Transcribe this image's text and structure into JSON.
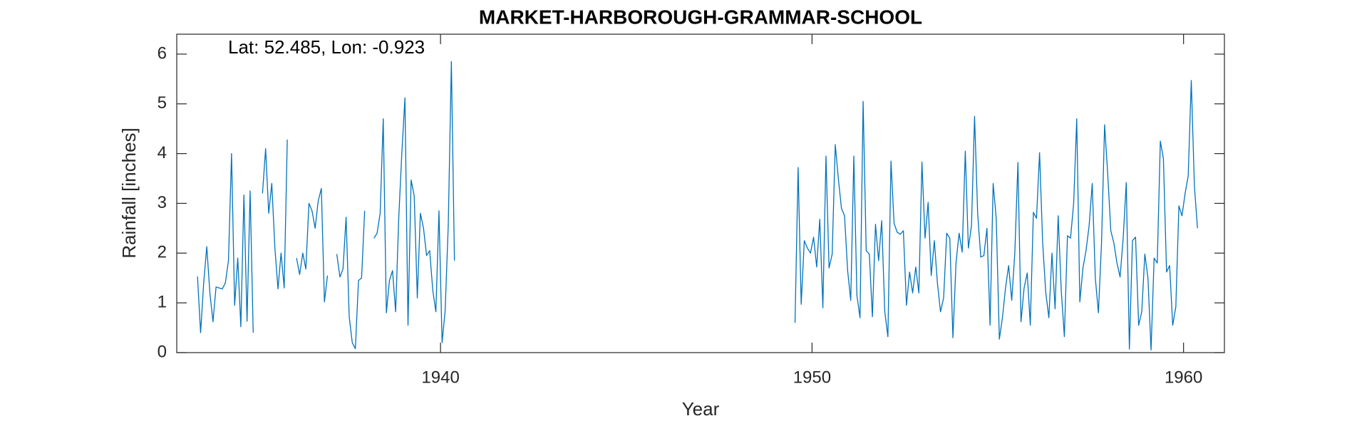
{
  "chart_data": {
    "type": "line",
    "title": "MARKET-HARBOROUGH-GRAMMAR-SCHOOL",
    "annotation": "Lat: 52.485, Lon: -0.923",
    "xlabel": "Year",
    "ylabel": "Rainfall [inches]",
    "color": "#0072bd",
    "xlim": [
      1932.9,
      1961.1
    ],
    "ylim": [
      0,
      6.4
    ],
    "xticks": [
      1940,
      1950,
      1960
    ],
    "yticks": [
      0,
      1,
      2,
      3,
      4,
      5,
      6
    ],
    "grid": false,
    "x": [
      1933.458,
      1933.542,
      1933.625,
      1933.708,
      1933.792,
      1933.875,
      1933.958,
      1934.042,
      1934.125,
      1934.208,
      1934.292,
      1934.375,
      1934.458,
      1934.542,
      1934.625,
      1934.708,
      1934.792,
      1934.875,
      1934.958,
      1935.042,
      1935.208,
      1935.292,
      1935.375,
      1935.458,
      1935.542,
      1935.625,
      1935.708,
      1935.792,
      1935.875,
      1935.958,
      1936.125,
      1936.208,
      1936.292,
      1936.375,
      1936.458,
      1936.542,
      1936.625,
      1936.708,
      1936.792,
      1936.875,
      1936.958,
      1937.042,
      1937.208,
      1937.292,
      1937.375,
      1937.458,
      1937.542,
      1937.625,
      1937.708,
      1937.792,
      1937.875,
      1937.958,
      1938.042,
      1938.208,
      1938.292,
      1938.375,
      1938.458,
      1938.542,
      1938.625,
      1938.708,
      1938.792,
      1938.875,
      1938.958,
      1939.042,
      1939.125,
      1939.208,
      1939.292,
      1939.375,
      1939.458,
      1939.542,
      1939.625,
      1939.708,
      1939.792,
      1939.875,
      1939.958,
      1940.042,
      1940.125,
      1940.208,
      1940.292,
      1940.375,
      1940.458,
      1949.542,
      1949.625,
      1949.708,
      1949.792,
      1949.875,
      1949.958,
      1950.042,
      1950.125,
      1950.208,
      1950.292,
      1950.375,
      1950.458,
      1950.542,
      1950.625,
      1950.708,
      1950.792,
      1950.875,
      1950.958,
      1951.042,
      1951.125,
      1951.208,
      1951.292,
      1951.375,
      1951.458,
      1951.542,
      1951.625,
      1951.708,
      1951.792,
      1951.875,
      1951.958,
      1952.042,
      1952.125,
      1952.208,
      1952.292,
      1952.375,
      1952.458,
      1952.542,
      1952.625,
      1952.708,
      1952.792,
      1952.875,
      1952.958,
      1953.042,
      1953.125,
      1953.208,
      1953.292,
      1953.375,
      1953.458,
      1953.542,
      1953.625,
      1953.708,
      1953.792,
      1953.875,
      1953.958,
      1954.042,
      1954.125,
      1954.208,
      1954.292,
      1954.375,
      1954.458,
      1954.542,
      1954.625,
      1954.708,
      1954.792,
      1954.875,
      1954.958,
      1955.042,
      1955.125,
      1955.208,
      1955.292,
      1955.375,
      1955.458,
      1955.542,
      1955.625,
      1955.708,
      1955.792,
      1955.875,
      1955.958,
      1956.042,
      1956.125,
      1956.208,
      1956.292,
      1956.375,
      1956.458,
      1956.542,
      1956.625,
      1956.708,
      1956.792,
      1956.875,
      1956.958,
      1957.042,
      1957.125,
      1957.208,
      1957.292,
      1957.375,
      1957.458,
      1957.542,
      1957.625,
      1957.708,
      1957.792,
      1957.875,
      1957.958,
      1958.042,
      1958.125,
      1958.208,
      1958.292,
      1958.375,
      1958.458,
      1958.542,
      1958.625,
      1958.708,
      1958.792,
      1958.875,
      1958.958,
      1959.042,
      1959.125,
      1959.208,
      1959.292,
      1959.375,
      1959.458,
      1959.542,
      1959.625,
      1959.708,
      1959.792,
      1959.875,
      1959.958,
      1960.042,
      1960.125,
      1960.208,
      1960.292,
      1960.375
    ],
    "values": [
      1.53,
      0.4,
      1.4,
      2.13,
      1.2,
      0.62,
      1.32,
      1.3,
      1.28,
      1.4,
      1.85,
      4.0,
      0.95,
      1.9,
      0.52,
      3.17,
      0.63,
      3.25,
      0.4,
      null,
      3.2,
      4.1,
      2.8,
      3.4,
      2.1,
      1.28,
      2.0,
      1.3,
      4.28,
      null,
      1.9,
      1.57,
      2.0,
      1.68,
      3.0,
      2.85,
      2.5,
      3.05,
      3.3,
      1.02,
      1.55,
      null,
      1.98,
      1.52,
      1.68,
      2.72,
      0.72,
      0.2,
      0.08,
      1.45,
      1.5,
      2.85,
      null,
      2.3,
      2.4,
      2.8,
      4.7,
      0.8,
      1.45,
      1.65,
      0.82,
      2.7,
      4.0,
      5.12,
      0.55,
      3.47,
      3.15,
      1.1,
      2.8,
      2.5,
      1.95,
      2.05,
      1.25,
      0.82,
      2.85,
      0.2,
      0.85,
      2.55,
      5.85,
      1.85,
      null,
      0.6,
      3.72,
      0.97,
      2.25,
      2.1,
      2.0,
      2.32,
      1.72,
      2.68,
      0.9,
      3.95,
      1.7,
      1.98,
      4.18,
      3.5,
      2.9,
      2.75,
      1.65,
      1.05,
      3.95,
      1.15,
      0.7,
      5.05,
      2.05,
      1.98,
      0.72,
      2.58,
      1.85,
      2.65,
      0.82,
      0.32,
      3.85,
      2.6,
      2.42,
      2.38,
      2.45,
      0.95,
      1.62,
      1.2,
      1.72,
      1.2,
      3.83,
      2.3,
      3.02,
      1.55,
      2.25,
      1.4,
      0.82,
      1.1,
      2.4,
      2.3,
      0.3,
      1.8,
      2.4,
      2.02,
      4.05,
      2.1,
      2.55,
      4.75,
      2.8,
      1.92,
      1.95,
      2.5,
      0.55,
      3.4,
      2.7,
      0.27,
      0.7,
      1.3,
      1.75,
      1.05,
      2.0,
      3.82,
      0.62,
      1.3,
      1.6,
      0.55,
      2.82,
      2.7,
      4.02,
      2.2,
      1.2,
      0.7,
      2.0,
      0.88,
      2.75,
      1.25,
      0.32,
      2.35,
      2.3,
      3.0,
      4.7,
      1.02,
      1.7,
      2.05,
      2.55,
      3.4,
      1.5,
      0.8,
      2.2,
      4.58,
      3.6,
      2.45,
      2.2,
      1.8,
      1.52,
      2.3,
      3.42,
      0.07,
      2.25,
      2.32,
      0.55,
      0.82,
      1.98,
      1.5,
      0.05,
      1.9,
      1.8,
      4.25,
      3.9,
      1.62,
      1.75,
      0.55,
      0.92,
      2.95,
      2.75,
      3.2,
      3.55,
      5.47,
      3.35,
      2.5
    ]
  }
}
